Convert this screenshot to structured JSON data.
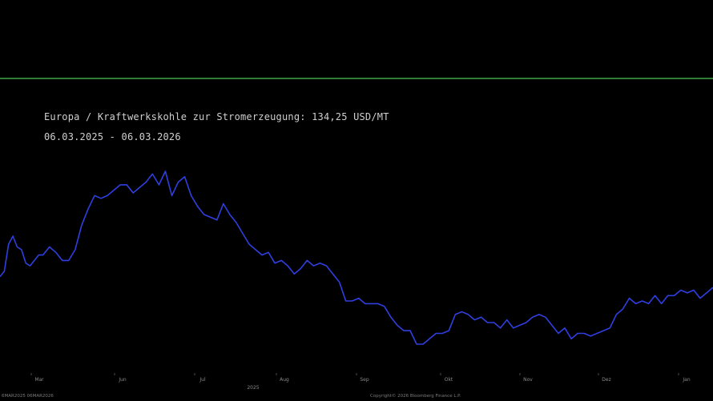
{
  "header": {
    "title": "Europa / Kraftwerkskohle zur Stromerzeugung: 134,25 USD/MT",
    "date_range": "06.03.2025 - 06.03.2026"
  },
  "footer": {
    "left": "6MAR2025 06MAR2026",
    "right": "Copyright© 2026 Bloomberg Finance L.P."
  },
  "colors": {
    "background": "#000000",
    "line": "#2f3fe0",
    "separator": "#2e7d32",
    "text": "#cfcfcf"
  },
  "chart_data": {
    "type": "line",
    "title": "Europa / Kraftwerkskohle zur Stromerzeugung: 134,25 USD/MT",
    "subtitle": "06.03.2025 - 06.03.2026",
    "unit": "USD/MT",
    "x_ticks": [
      "Mar",
      "Jun",
      "Jul",
      "Aug",
      "Sep",
      "Okt",
      "Nov",
      "Dez",
      "Jan"
    ],
    "x_year_label": "2025",
    "grid": false,
    "legend": "none",
    "series": [
      {
        "name": "",
        "x": [
          "2025-03-06",
          "2025-03-08",
          "2025-03-10",
          "2025-03-12",
          "2025-03-14",
          "2025-03-16",
          "2025-03-18",
          "2025-03-20",
          "2025-03-22",
          "2025-03-24",
          "2025-03-26",
          "2025-03-29",
          "2025-04-01",
          "2025-04-04",
          "2025-04-07",
          "2025-04-10",
          "2025-04-13",
          "2025-04-16",
          "2025-04-19",
          "2025-04-22",
          "2025-04-25",
          "2025-04-28",
          "2025-05-01",
          "2025-05-04",
          "2025-05-07",
          "2025-05-10",
          "2025-05-13",
          "2025-05-16",
          "2025-05-19",
          "2025-05-22",
          "2025-05-25",
          "2025-05-28",
          "2025-05-31",
          "2025-06-03",
          "2025-06-06",
          "2025-06-09",
          "2025-06-12",
          "2025-06-15",
          "2025-06-18",
          "2025-06-21",
          "2025-06-24",
          "2025-06-27",
          "2025-06-30",
          "2025-07-03",
          "2025-07-06",
          "2025-07-09",
          "2025-07-12",
          "2025-07-15",
          "2025-07-18",
          "2025-07-21",
          "2025-07-24",
          "2025-07-27",
          "2025-07-30",
          "2025-08-02",
          "2025-08-05",
          "2025-08-08",
          "2025-08-11",
          "2025-08-14",
          "2025-08-17",
          "2025-08-20",
          "2025-08-23",
          "2025-08-26",
          "2025-08-29",
          "2025-09-01",
          "2025-09-04",
          "2025-09-07",
          "2025-09-10",
          "2025-09-13",
          "2025-09-16",
          "2025-09-19",
          "2025-09-22",
          "2025-09-25",
          "2025-09-28",
          "2025-10-01",
          "2025-10-04",
          "2025-10-07",
          "2025-10-10",
          "2025-10-13",
          "2025-10-16",
          "2025-10-19",
          "2025-10-22",
          "2025-10-25",
          "2025-10-28",
          "2025-10-31",
          "2025-11-03",
          "2025-11-06",
          "2025-11-09",
          "2025-11-12",
          "2025-11-15",
          "2025-11-18",
          "2025-11-21",
          "2025-11-24",
          "2025-11-27",
          "2025-11-30",
          "2025-12-03",
          "2025-12-06",
          "2025-12-09",
          "2025-12-12",
          "2025-12-15",
          "2025-12-18",
          "2025-12-21",
          "2025-12-24",
          "2025-12-27",
          "2025-12-30",
          "2026-01-02",
          "2026-01-05",
          "2026-01-08",
          "2026-01-11",
          "2026-01-14",
          "2026-01-17",
          "2026-01-20",
          "2026-01-23",
          "2026-01-26",
          "2026-01-29",
          "2026-02-01"
        ],
        "values": [
          101.5,
          102.5,
          107.5,
          109.0,
          107.0,
          106.5,
          104.0,
          103.5,
          104.5,
          105.5,
          105.5,
          107.0,
          106.0,
          104.5,
          104.5,
          106.5,
          111.0,
          114.0,
          116.5,
          116.0,
          116.5,
          117.5,
          118.5,
          118.5,
          117.0,
          118.0,
          119.0,
          120.5,
          118.5,
          121.0,
          116.5,
          119.0,
          120.0,
          116.5,
          114.5,
          113.0,
          112.5,
          112.0,
          115.0,
          113.0,
          111.5,
          109.5,
          107.5,
          106.5,
          105.5,
          106.0,
          104.0,
          104.5,
          103.5,
          102.0,
          103.0,
          104.5,
          103.5,
          104.0,
          103.5,
          102.0,
          100.5,
          97.0,
          97.0,
          97.5,
          96.5,
          96.5,
          96.5,
          96.0,
          94.0,
          92.5,
          91.5,
          91.5,
          89.0,
          89.0,
          90.0,
          91.0,
          91.0,
          91.5,
          94.5,
          95.0,
          94.5,
          93.5,
          94.0,
          93.0,
          93.0,
          92.0,
          93.5,
          92.0,
          92.5,
          93.0,
          94.0,
          94.5,
          94.0,
          92.5,
          91.0,
          92.0,
          90.0,
          91.0,
          91.0,
          90.5,
          91.0,
          91.5,
          92.0,
          94.5,
          95.5,
          97.5,
          96.5,
          97.0,
          96.5,
          98.0,
          96.5,
          98.0,
          98.0,
          99.0,
          98.5,
          99.0,
          97.5,
          98.5,
          99.5
        ]
      }
    ]
  }
}
